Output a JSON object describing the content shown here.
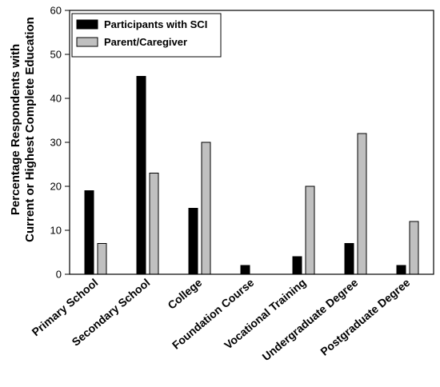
{
  "chart_data": {
    "type": "bar",
    "categories": [
      "Primary School",
      "Secondary School",
      "College",
      "Foundation Course",
      "Vocational Training",
      "Undergraduate Degree",
      "Postgraduate Degree"
    ],
    "series": [
      {
        "name": "Participants with SCI",
        "values": [
          19,
          45,
          15,
          2,
          4,
          7,
          2
        ],
        "color": "#000000"
      },
      {
        "name": "Parent/Caregiver",
        "values": [
          7,
          23,
          30,
          0,
          20,
          32,
          12
        ],
        "color": "#c0c0c0"
      }
    ],
    "title": "",
    "xlabel": "",
    "ylabel_line1": "Percentage Respondents with",
    "ylabel_line2": "Current or Highest Complete Education",
    "ylim": [
      0,
      60
    ],
    "yticks": [
      "0",
      "10",
      "20",
      "30",
      "40",
      "50",
      "60"
    ],
    "grid": false,
    "legend_position": "top-left"
  }
}
